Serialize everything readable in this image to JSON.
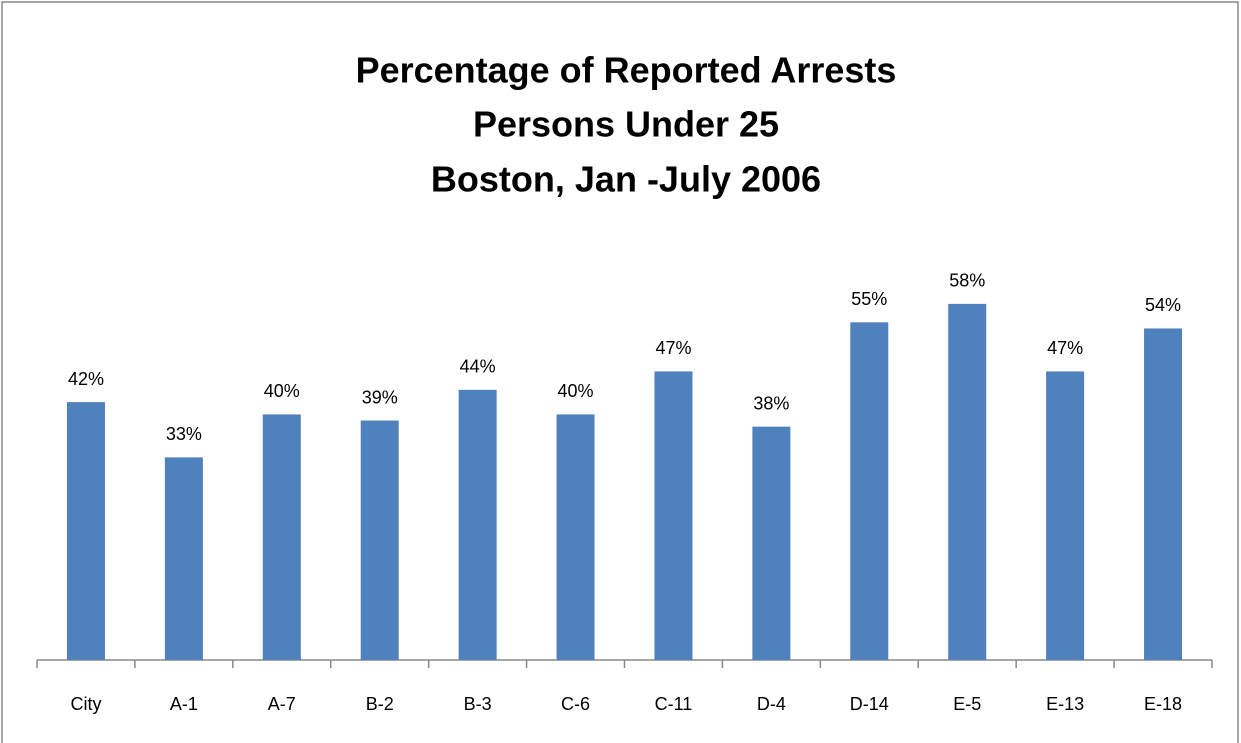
{
  "chart_data": {
    "type": "bar",
    "title": [
      "Percentage of Reported Arrests",
      "Persons Under 25",
      "Boston, Jan -July 2006"
    ],
    "categories": [
      "City",
      "A-1",
      "A-7",
      "B-2",
      "B-3",
      "C-6",
      "C-11",
      "D-4",
      "D-14",
      "E-5",
      "E-13",
      "E-18"
    ],
    "values": [
      42,
      33,
      40,
      39,
      44,
      40,
      47,
      38,
      55,
      58,
      47,
      54
    ],
    "value_labels": [
      "42%",
      "33%",
      "40%",
      "39%",
      "44%",
      "40%",
      "47%",
      "38%",
      "55%",
      "58%",
      "47%",
      "54%"
    ],
    "color": "#4f81bd"
  }
}
